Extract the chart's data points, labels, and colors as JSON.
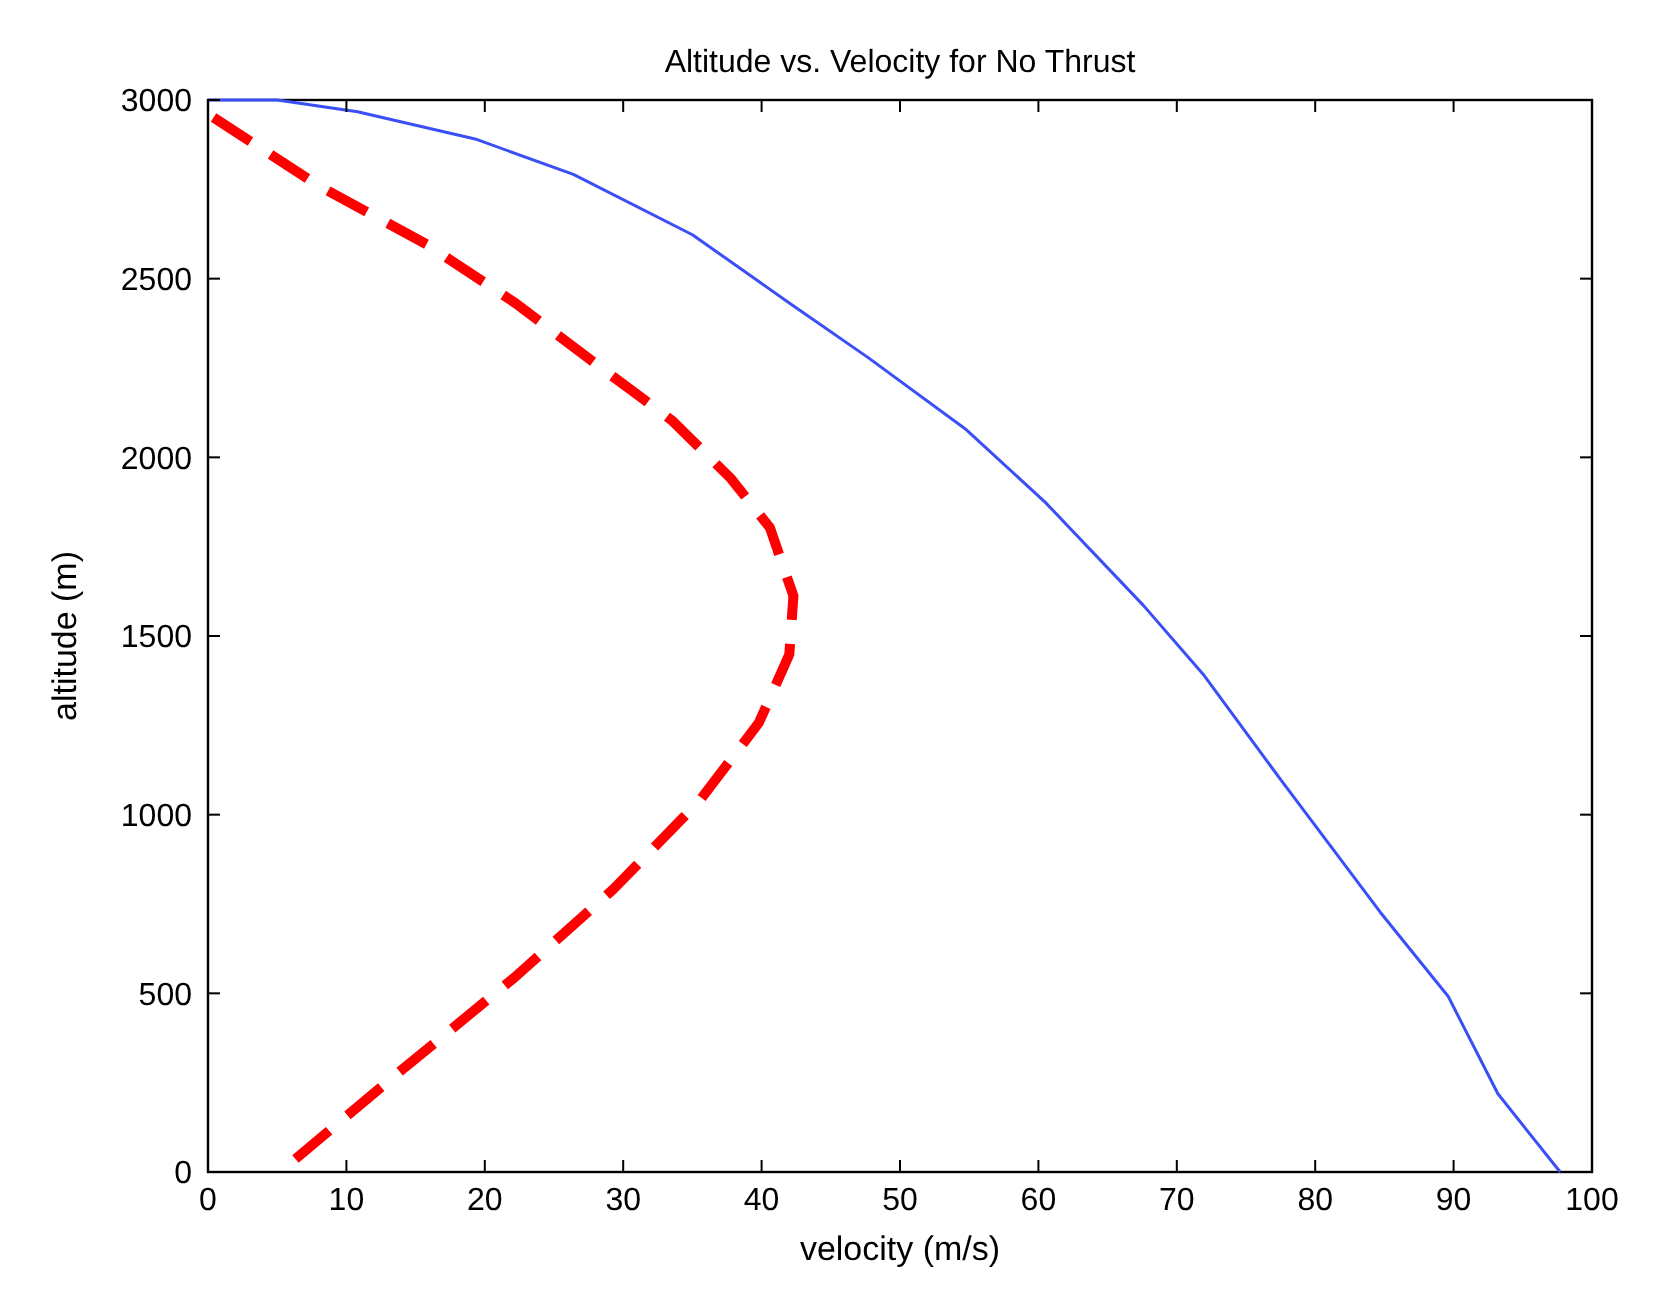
{
  "chart_data": {
    "type": "line",
    "title": "Altitude vs. Velocity for No Thrust",
    "xlabel": "velocity (m/s)",
    "ylabel": "altitude (m)",
    "xlim": [
      0,
      100
    ],
    "ylim": [
      0,
      3000
    ],
    "xticks": [
      0,
      10,
      20,
      30,
      40,
      50,
      60,
      70,
      80,
      90,
      100
    ],
    "yticks": [
      0,
      500,
      1000,
      1500,
      2000,
      2500,
      3000
    ],
    "grid": false,
    "series": [
      {
        "color": "#3a4ff5",
        "line_style": "solid",
        "x": [
          0,
          5,
          10.8,
          19.3,
          26.4,
          35,
          42,
          47.7,
          54.8,
          60.5,
          67.6,
          71.9,
          77.6,
          84.7,
          89.6,
          93.2,
          97.7
        ],
        "values": [
          3000,
          3000,
          2967,
          2891,
          2792,
          2623,
          2432,
          2279,
          2077,
          1874,
          1585,
          1393,
          1093,
          727,
          492,
          219,
          0
        ]
      },
      {
        "color": "#ff0000",
        "line_style": "dashed",
        "x": [
          0.4,
          8,
          15.8,
          22.2,
          27.8,
          33.5,
          37.8,
          40.6,
          42.3,
          42,
          39.8,
          35.5,
          29.3,
          22.2,
          13.6,
          5.2
        ],
        "values": [
          2951,
          2760,
          2596,
          2432,
          2268,
          2104,
          1940,
          1803,
          1612,
          1448,
          1257,
          1038,
          792,
          546,
          273,
          0
        ]
      }
    ]
  }
}
